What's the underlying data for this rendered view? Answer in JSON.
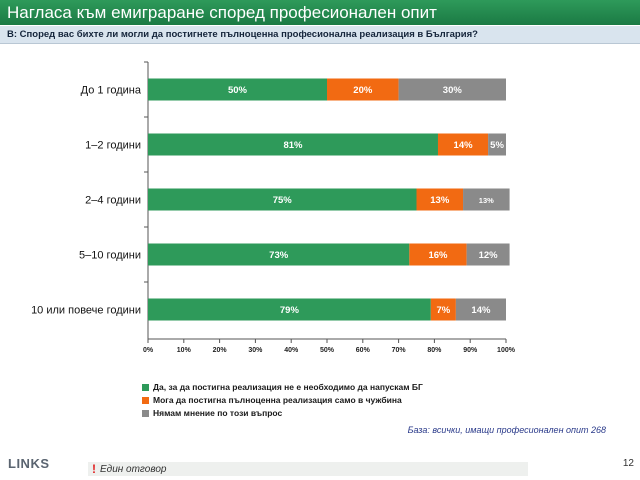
{
  "slide": {
    "title": "Нагласа към емиграране според професионален опит",
    "question": "В: Според вас бихте ли могли да постигнете пълноценна професионална реализация в България?",
    "base_note": "База: всички, имащи професионален опит 268",
    "footer_note": "Един отговор",
    "footer_mark": "!",
    "page_number": "12",
    "logo_text": "LINKS"
  },
  "chart_data": {
    "type": "bar",
    "orientation": "horizontal",
    "stacked": true,
    "categories": [
      "До 1 година",
      "1–2 години",
      "2–4 години",
      "5–10 години",
      "10 или повече години"
    ],
    "series": [
      {
        "name": "Да, за да постигна реализация не е необходимо да напускам БГ",
        "color": "#2e9a5a",
        "values": [
          50,
          81,
          75,
          73,
          79
        ],
        "labels": [
          "50%",
          "81%",
          "75%",
          "73%",
          "79%"
        ]
      },
      {
        "name": "Мога да постигна пълноценна реализация само в чужбина",
        "color": "#f26a12",
        "values": [
          20,
          14,
          13,
          16,
          7
        ],
        "labels": [
          "20%",
          "14%",
          "13%",
          "16%",
          "7%"
        ]
      },
      {
        "name": "Нямам мнение по този въпрос",
        "color": "#8a8a8a",
        "values": [
          30,
          5,
          13,
          12,
          14
        ],
        "labels": [
          "30%",
          "5%",
          "13%",
          "12%",
          "14%"
        ]
      }
    ],
    "x_ticks": [
      "0%",
      "10%",
      "20%",
      "30%",
      "40%",
      "50%",
      "60%",
      "70%",
      "80%",
      "90%",
      "100%"
    ],
    "xlim": [
      0,
      100
    ],
    "grid": false,
    "legend_position": "bottom"
  }
}
